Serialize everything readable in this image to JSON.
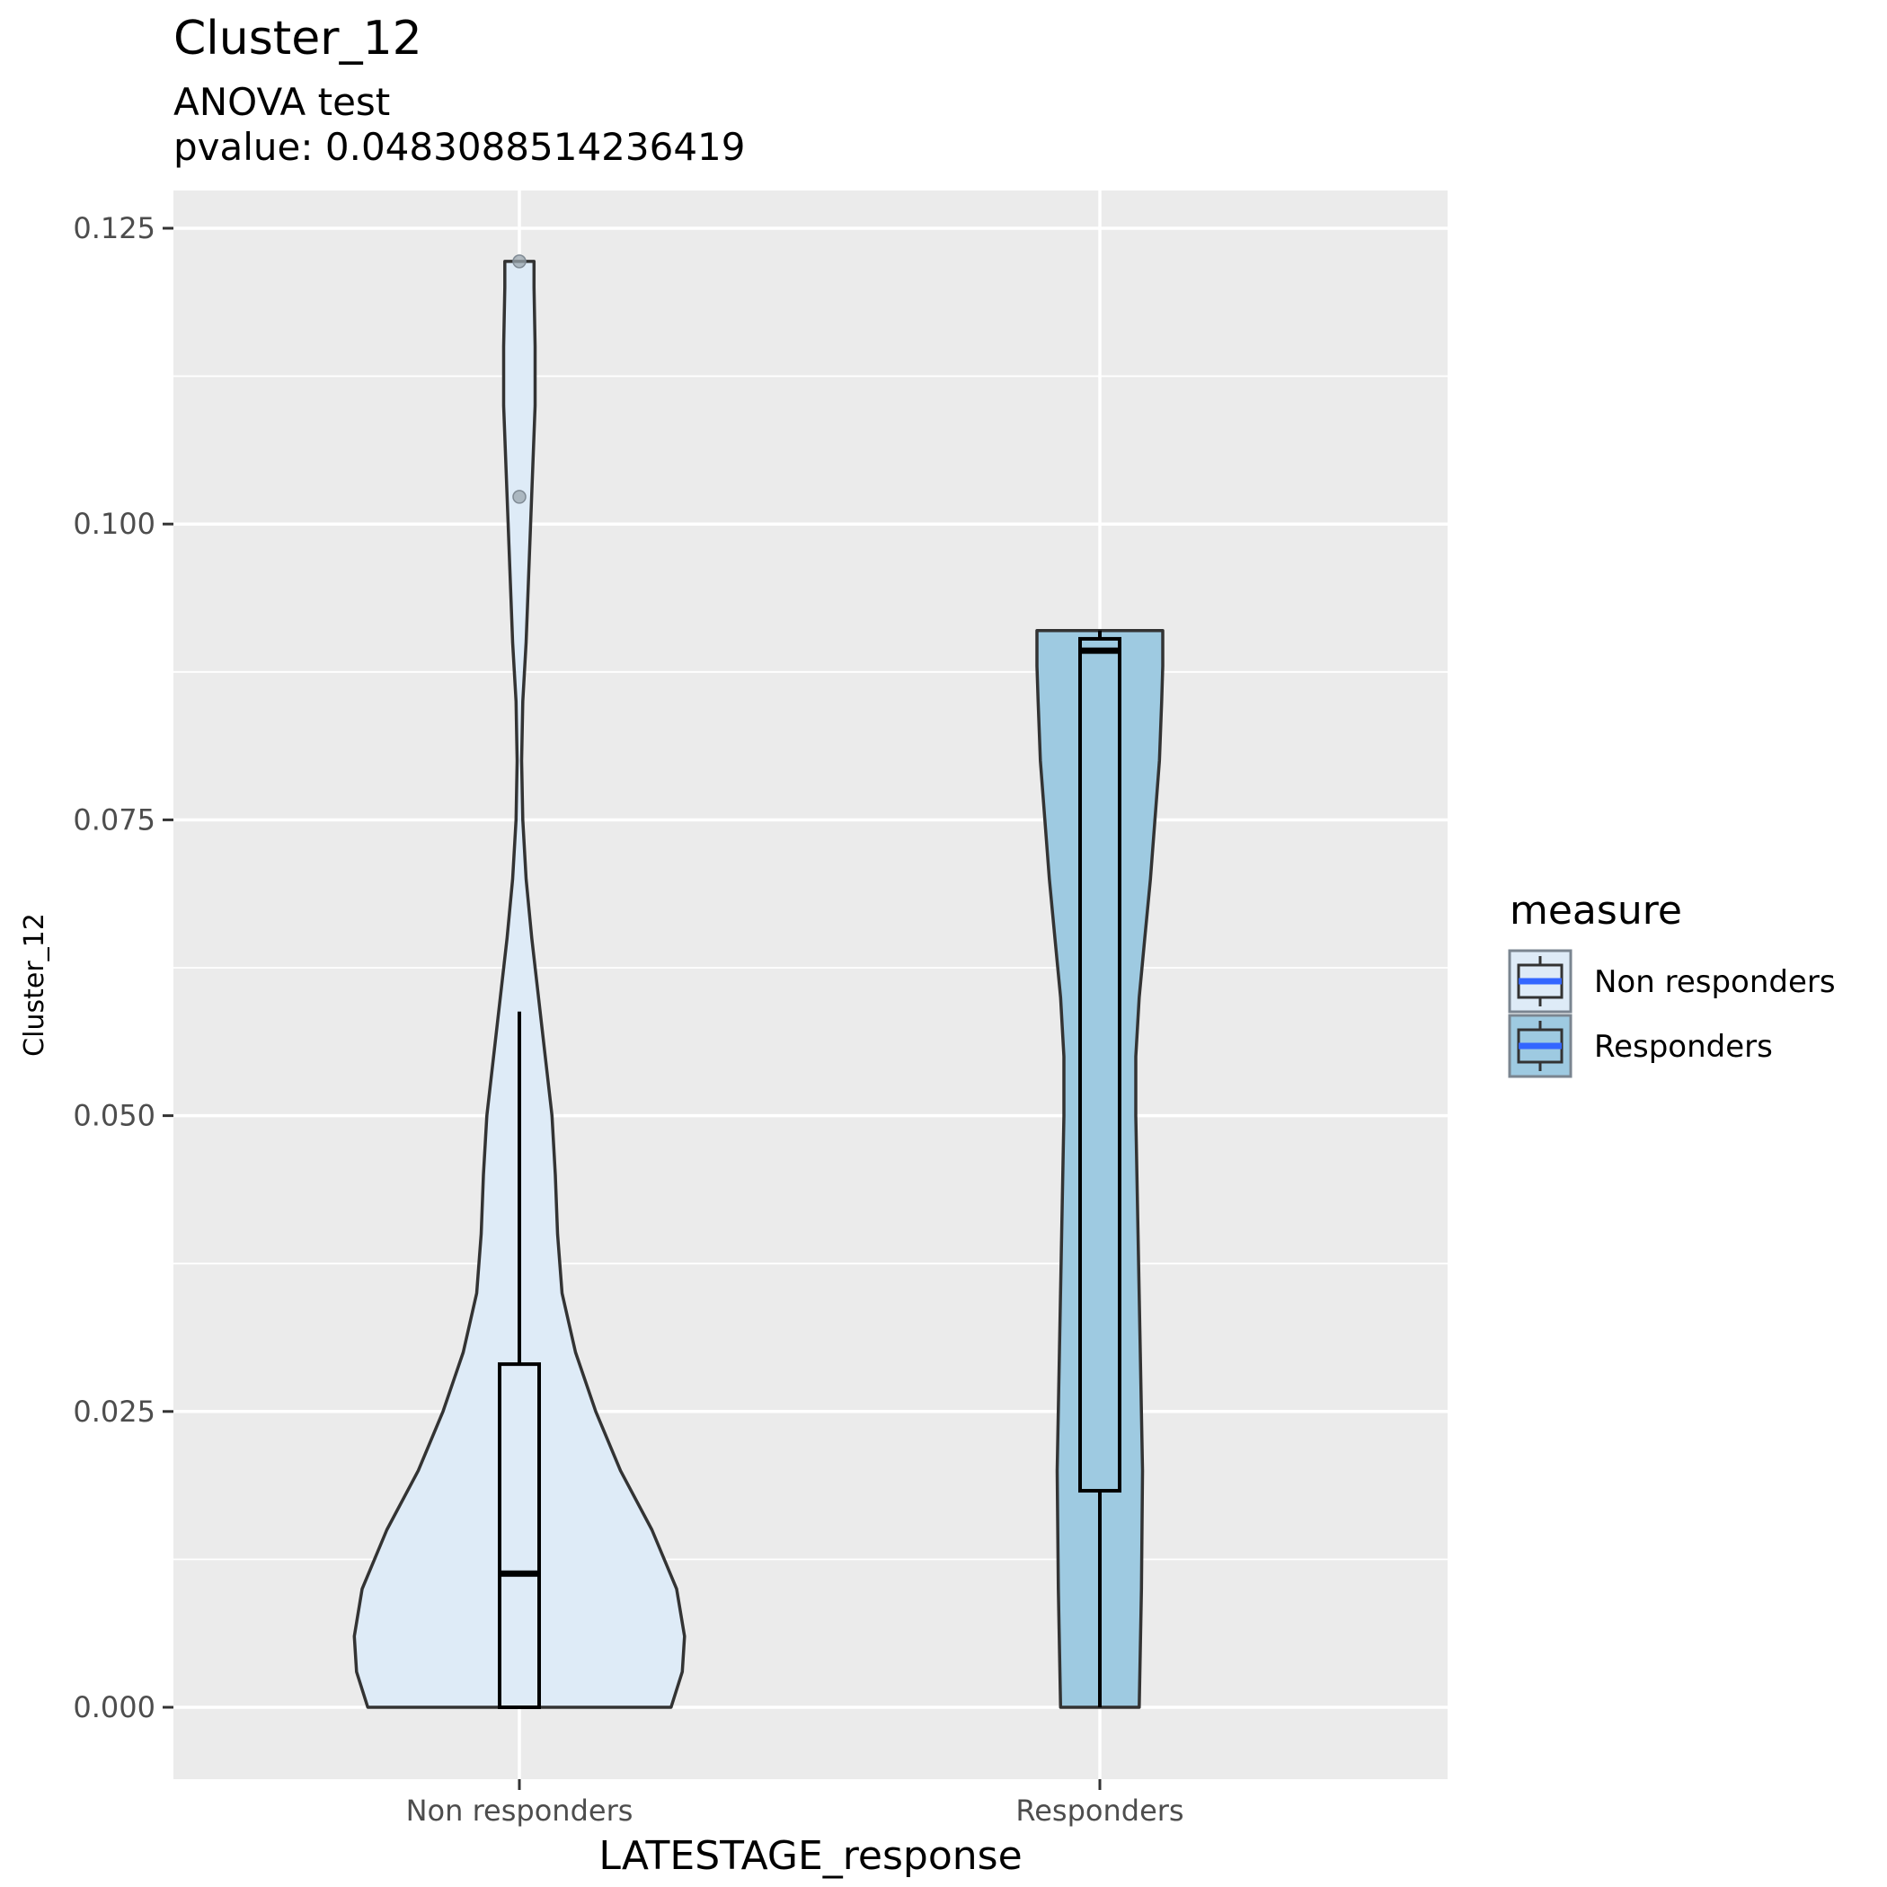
{
  "chart_data": {
    "type": "violin",
    "title": "Cluster_12",
    "subtitle_lines": [
      "ANOVA test",
      "pvalue: 0.0483088514236419"
    ],
    "xlabel": "LATESTAGE_response",
    "ylabel": "Cluster_12",
    "categories": [
      "Non responders",
      "Responders"
    ],
    "ylim": [
      -0.006,
      0.128
    ],
    "yticks": [
      0.0,
      0.025,
      0.05,
      0.075,
      0.1,
      0.125
    ],
    "ytick_labels": [
      "0.000",
      "0.025",
      "0.050",
      "0.075",
      "0.100",
      "0.125"
    ],
    "grid": true,
    "legend": {
      "title": "measure",
      "position": "right",
      "entries": [
        "Non responders",
        "Responders"
      ]
    },
    "series": [
      {
        "name": "Non responders",
        "color": "#deebf7",
        "box": {
          "min": 0.0,
          "q1": 0.0,
          "median": 0.0113,
          "q3": 0.029,
          "max": 0.0588
        },
        "outliers": [
          0.1023,
          0.1222
        ],
        "violin_range": [
          0.0,
          0.1222
        ],
        "violin_half_width": [
          [
            0.0,
            0.135
          ],
          [
            0.003,
            0.145
          ],
          [
            0.006,
            0.147
          ],
          [
            0.01,
            0.14
          ],
          [
            0.015,
            0.118
          ],
          [
            0.02,
            0.09
          ],
          [
            0.025,
            0.068
          ],
          [
            0.03,
            0.05
          ],
          [
            0.035,
            0.038
          ],
          [
            0.04,
            0.034
          ],
          [
            0.045,
            0.032
          ],
          [
            0.05,
            0.029
          ],
          [
            0.055,
            0.023
          ],
          [
            0.06,
            0.017
          ],
          [
            0.065,
            0.011
          ],
          [
            0.07,
            0.006
          ],
          [
            0.075,
            0.003
          ],
          [
            0.08,
            0.002
          ],
          [
            0.085,
            0.003
          ],
          [
            0.09,
            0.006
          ],
          [
            0.095,
            0.008
          ],
          [
            0.1,
            0.01
          ],
          [
            0.105,
            0.012
          ],
          [
            0.11,
            0.014
          ],
          [
            0.115,
            0.014
          ],
          [
            0.12,
            0.013
          ],
          [
            0.1222,
            0.013
          ]
        ]
      },
      {
        "name": "Responders",
        "color": "#9ecae1",
        "box": {
          "min": 0.0,
          "q1": 0.0183,
          "median": 0.0893,
          "q3": 0.0903,
          "max": 0.091
        },
        "outliers": [],
        "violin_range": [
          0.0,
          0.091
        ],
        "violin_half_width": [
          [
            0.0,
            0.035
          ],
          [
            0.01,
            0.037
          ],
          [
            0.02,
            0.038
          ],
          [
            0.03,
            0.036
          ],
          [
            0.04,
            0.034
          ],
          [
            0.05,
            0.032
          ],
          [
            0.055,
            0.032
          ],
          [
            0.06,
            0.035
          ],
          [
            0.065,
            0.04
          ],
          [
            0.07,
            0.045
          ],
          [
            0.075,
            0.049
          ],
          [
            0.08,
            0.053
          ],
          [
            0.085,
            0.055
          ],
          [
            0.088,
            0.056
          ],
          [
            0.091,
            0.056
          ]
        ]
      }
    ]
  }
}
